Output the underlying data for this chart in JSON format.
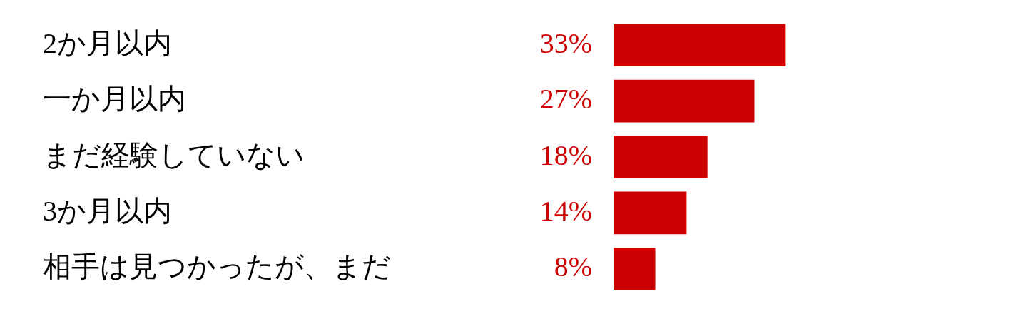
{
  "chart_data": {
    "type": "bar",
    "orientation": "horizontal",
    "categories": [
      "2か月以内",
      "一か月以内",
      "まだ経験していない",
      "3か月以内",
      "相手は見つかったが、まだ"
    ],
    "values": [
      33,
      27,
      18,
      14,
      8
    ],
    "color": "#cc0000",
    "value_labels": [
      "33%",
      "27%",
      "18%",
      "14%",
      "8%"
    ],
    "grid": false,
    "legend": false
  }
}
